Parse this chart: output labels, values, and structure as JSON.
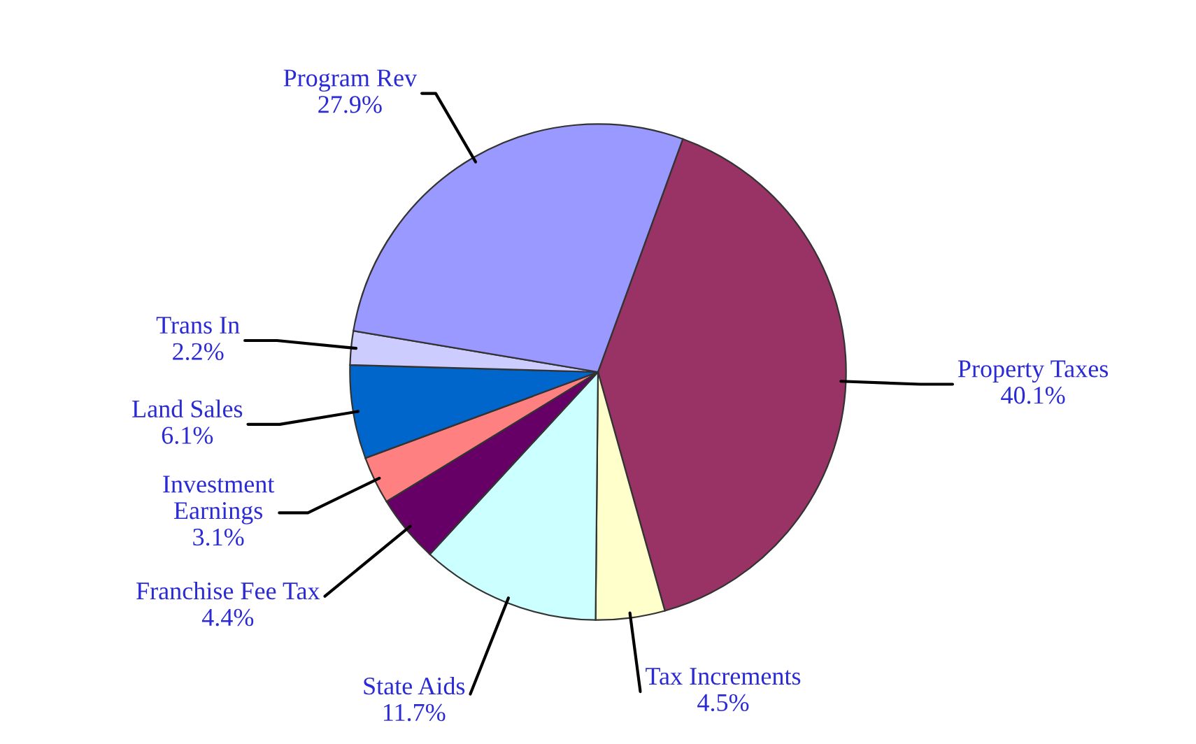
{
  "chart_data": {
    "type": "pie",
    "categories": [
      "Property Taxes",
      "Tax Increments",
      "State Aids",
      "Franchise Fee Tax",
      "Investment\nEarnings",
      "Land Sales",
      "Trans In",
      "Program Rev"
    ],
    "values": [
      40.1,
      4.5,
      11.7,
      4.4,
      3.1,
      6.1,
      2.2,
      27.9
    ],
    "colors": [
      "#993366",
      "#ffffcc",
      "#ccffff",
      "#660066",
      "#ff8080",
      "#0066cc",
      "#ccccff",
      "#9999ff"
    ],
    "value_labels": [
      "40.1%",
      "4.5%",
      "11.7%",
      "4.4%",
      "3.1%",
      "6.1%",
      "2.2%",
      "27.9%"
    ]
  }
}
